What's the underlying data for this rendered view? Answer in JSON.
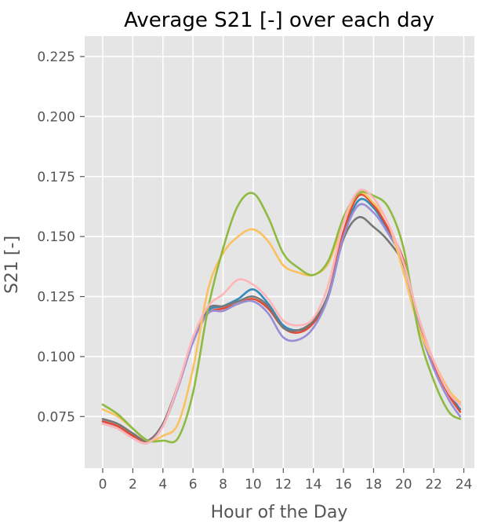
{
  "chart_data": {
    "type": "line",
    "title": "Average S21 [-] over each day",
    "xlabel": "Hour of the Day",
    "ylabel": "S21 [-]",
    "xlim": [
      -1.2,
      24.7
    ],
    "ylim": [
      0.0535,
      0.2335
    ],
    "xticks": [
      0,
      2,
      4,
      6,
      8,
      10,
      12,
      14,
      16,
      18,
      20,
      22,
      24
    ],
    "yticks": [
      0.075,
      0.1,
      0.125,
      0.15,
      0.175,
      0.2,
      0.225
    ],
    "ytick_labels": [
      "0.075",
      "0.100",
      "0.125",
      "0.150",
      "0.175",
      "0.200",
      "0.225"
    ],
    "grid": true,
    "background": "#e5e5e5",
    "x": [
      0,
      1,
      2,
      3,
      4,
      5,
      6,
      7,
      8,
      9,
      10,
      11,
      12,
      13,
      14,
      15,
      16,
      17,
      18,
      19,
      20,
      21,
      22,
      23,
      23.75
    ],
    "series": [
      {
        "color": "#348abd",
        "values": [
          0.073,
          0.071,
          0.067,
          0.065,
          0.072,
          0.088,
          0.107,
          0.119,
          0.121,
          0.124,
          0.128,
          0.122,
          0.113,
          0.111,
          0.114,
          0.125,
          0.15,
          0.165,
          0.162,
          0.152,
          0.14,
          0.115,
          0.098,
          0.085,
          0.078
        ]
      },
      {
        "color": "#e24a33",
        "values": [
          0.073,
          0.071,
          0.067,
          0.065,
          0.072,
          0.088,
          0.107,
          0.118,
          0.12,
          0.122,
          0.124,
          0.12,
          0.112,
          0.11,
          0.114,
          0.126,
          0.152,
          0.167,
          0.163,
          0.153,
          0.14,
          0.115,
          0.097,
          0.084,
          0.077
        ]
      },
      {
        "color": "#777777",
        "values": [
          0.074,
          0.072,
          0.068,
          0.065,
          0.072,
          0.088,
          0.107,
          0.12,
          0.121,
          0.123,
          0.125,
          0.121,
          0.112,
          0.111,
          0.115,
          0.126,
          0.149,
          0.158,
          0.154,
          0.148,
          0.138,
          0.116,
          0.098,
          0.086,
          0.08
        ]
      },
      {
        "color": "#988ed5",
        "values": [
          0.072,
          0.07,
          0.066,
          0.064,
          0.071,
          0.087,
          0.106,
          0.118,
          0.119,
          0.122,
          0.123,
          0.118,
          0.108,
          0.107,
          0.112,
          0.125,
          0.15,
          0.163,
          0.16,
          0.151,
          0.139,
          0.113,
          0.095,
          0.082,
          0.075
        ]
      },
      {
        "color": "#fbc15e",
        "values": [
          0.078,
          0.075,
          0.07,
          0.065,
          0.067,
          0.072,
          0.095,
          0.128,
          0.143,
          0.15,
          0.153,
          0.148,
          0.138,
          0.135,
          0.134,
          0.139,
          0.156,
          0.168,
          0.164,
          0.155,
          0.135,
          0.112,
          0.098,
          0.086,
          0.081
        ]
      },
      {
        "color": "#8eba42",
        "values": [
          0.08,
          0.076,
          0.07,
          0.065,
          0.065,
          0.066,
          0.085,
          0.12,
          0.145,
          0.163,
          0.168,
          0.158,
          0.143,
          0.137,
          0.134,
          0.14,
          0.158,
          0.168,
          0.167,
          0.162,
          0.145,
          0.11,
          0.09,
          0.077,
          0.074
        ]
      },
      {
        "color": "#ffb5b8",
        "values": [
          0.072,
          0.07,
          0.066,
          0.064,
          0.071,
          0.088,
          0.108,
          0.121,
          0.126,
          0.132,
          0.13,
          0.124,
          0.115,
          0.113,
          0.116,
          0.13,
          0.156,
          0.169,
          0.166,
          0.155,
          0.139,
          0.116,
          0.098,
          0.085,
          0.08
        ]
      }
    ]
  }
}
